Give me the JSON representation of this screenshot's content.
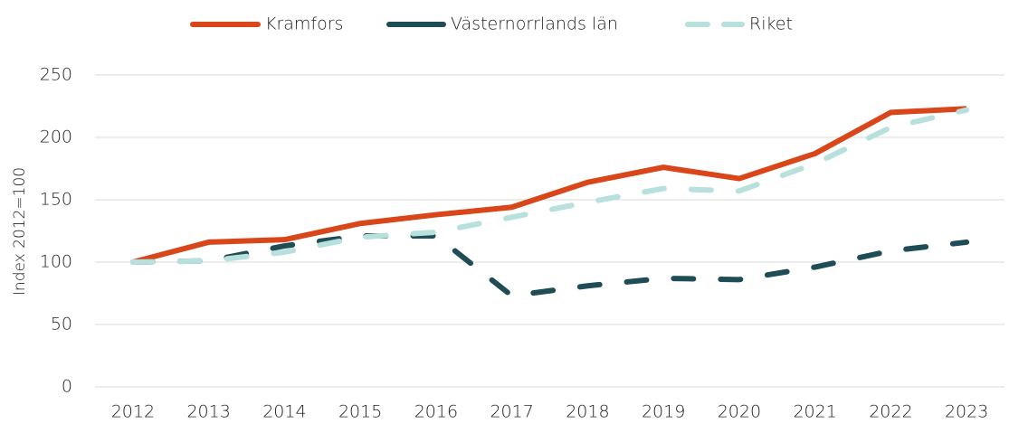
{
  "chart_data": {
    "type": "line",
    "y_label": "Index 2012=100",
    "categories": [
      "2012",
      "2013",
      "2014",
      "2015",
      "2016",
      "2017",
      "2018",
      "2019",
      "2020",
      "2021",
      "2022",
      "2023"
    ],
    "series": [
      {
        "name": "Kramfors",
        "color": "#d9461a",
        "dashed": false,
        "values": [
          100,
          116,
          118,
          131,
          138,
          144,
          164,
          176,
          167,
          187,
          220,
          223
        ]
      },
      {
        "name": "Västernorrlands län",
        "color": "#1e4d55",
        "dashed": true,
        "values": [
          100,
          101,
          113,
          121,
          121,
          73,
          81,
          87,
          86,
          96,
          109,
          116
        ]
      },
      {
        "name": "Riket",
        "color": "#b8e0dc",
        "dashed": true,
        "values": [
          100,
          101,
          108,
          120,
          124,
          136,
          148,
          159,
          157,
          179,
          208,
          222
        ]
      }
    ],
    "ylim": [
      0,
      250
    ],
    "yticks": [
      0,
      50,
      100,
      150,
      200,
      250
    ],
    "grid": true,
    "legend": "top"
  }
}
